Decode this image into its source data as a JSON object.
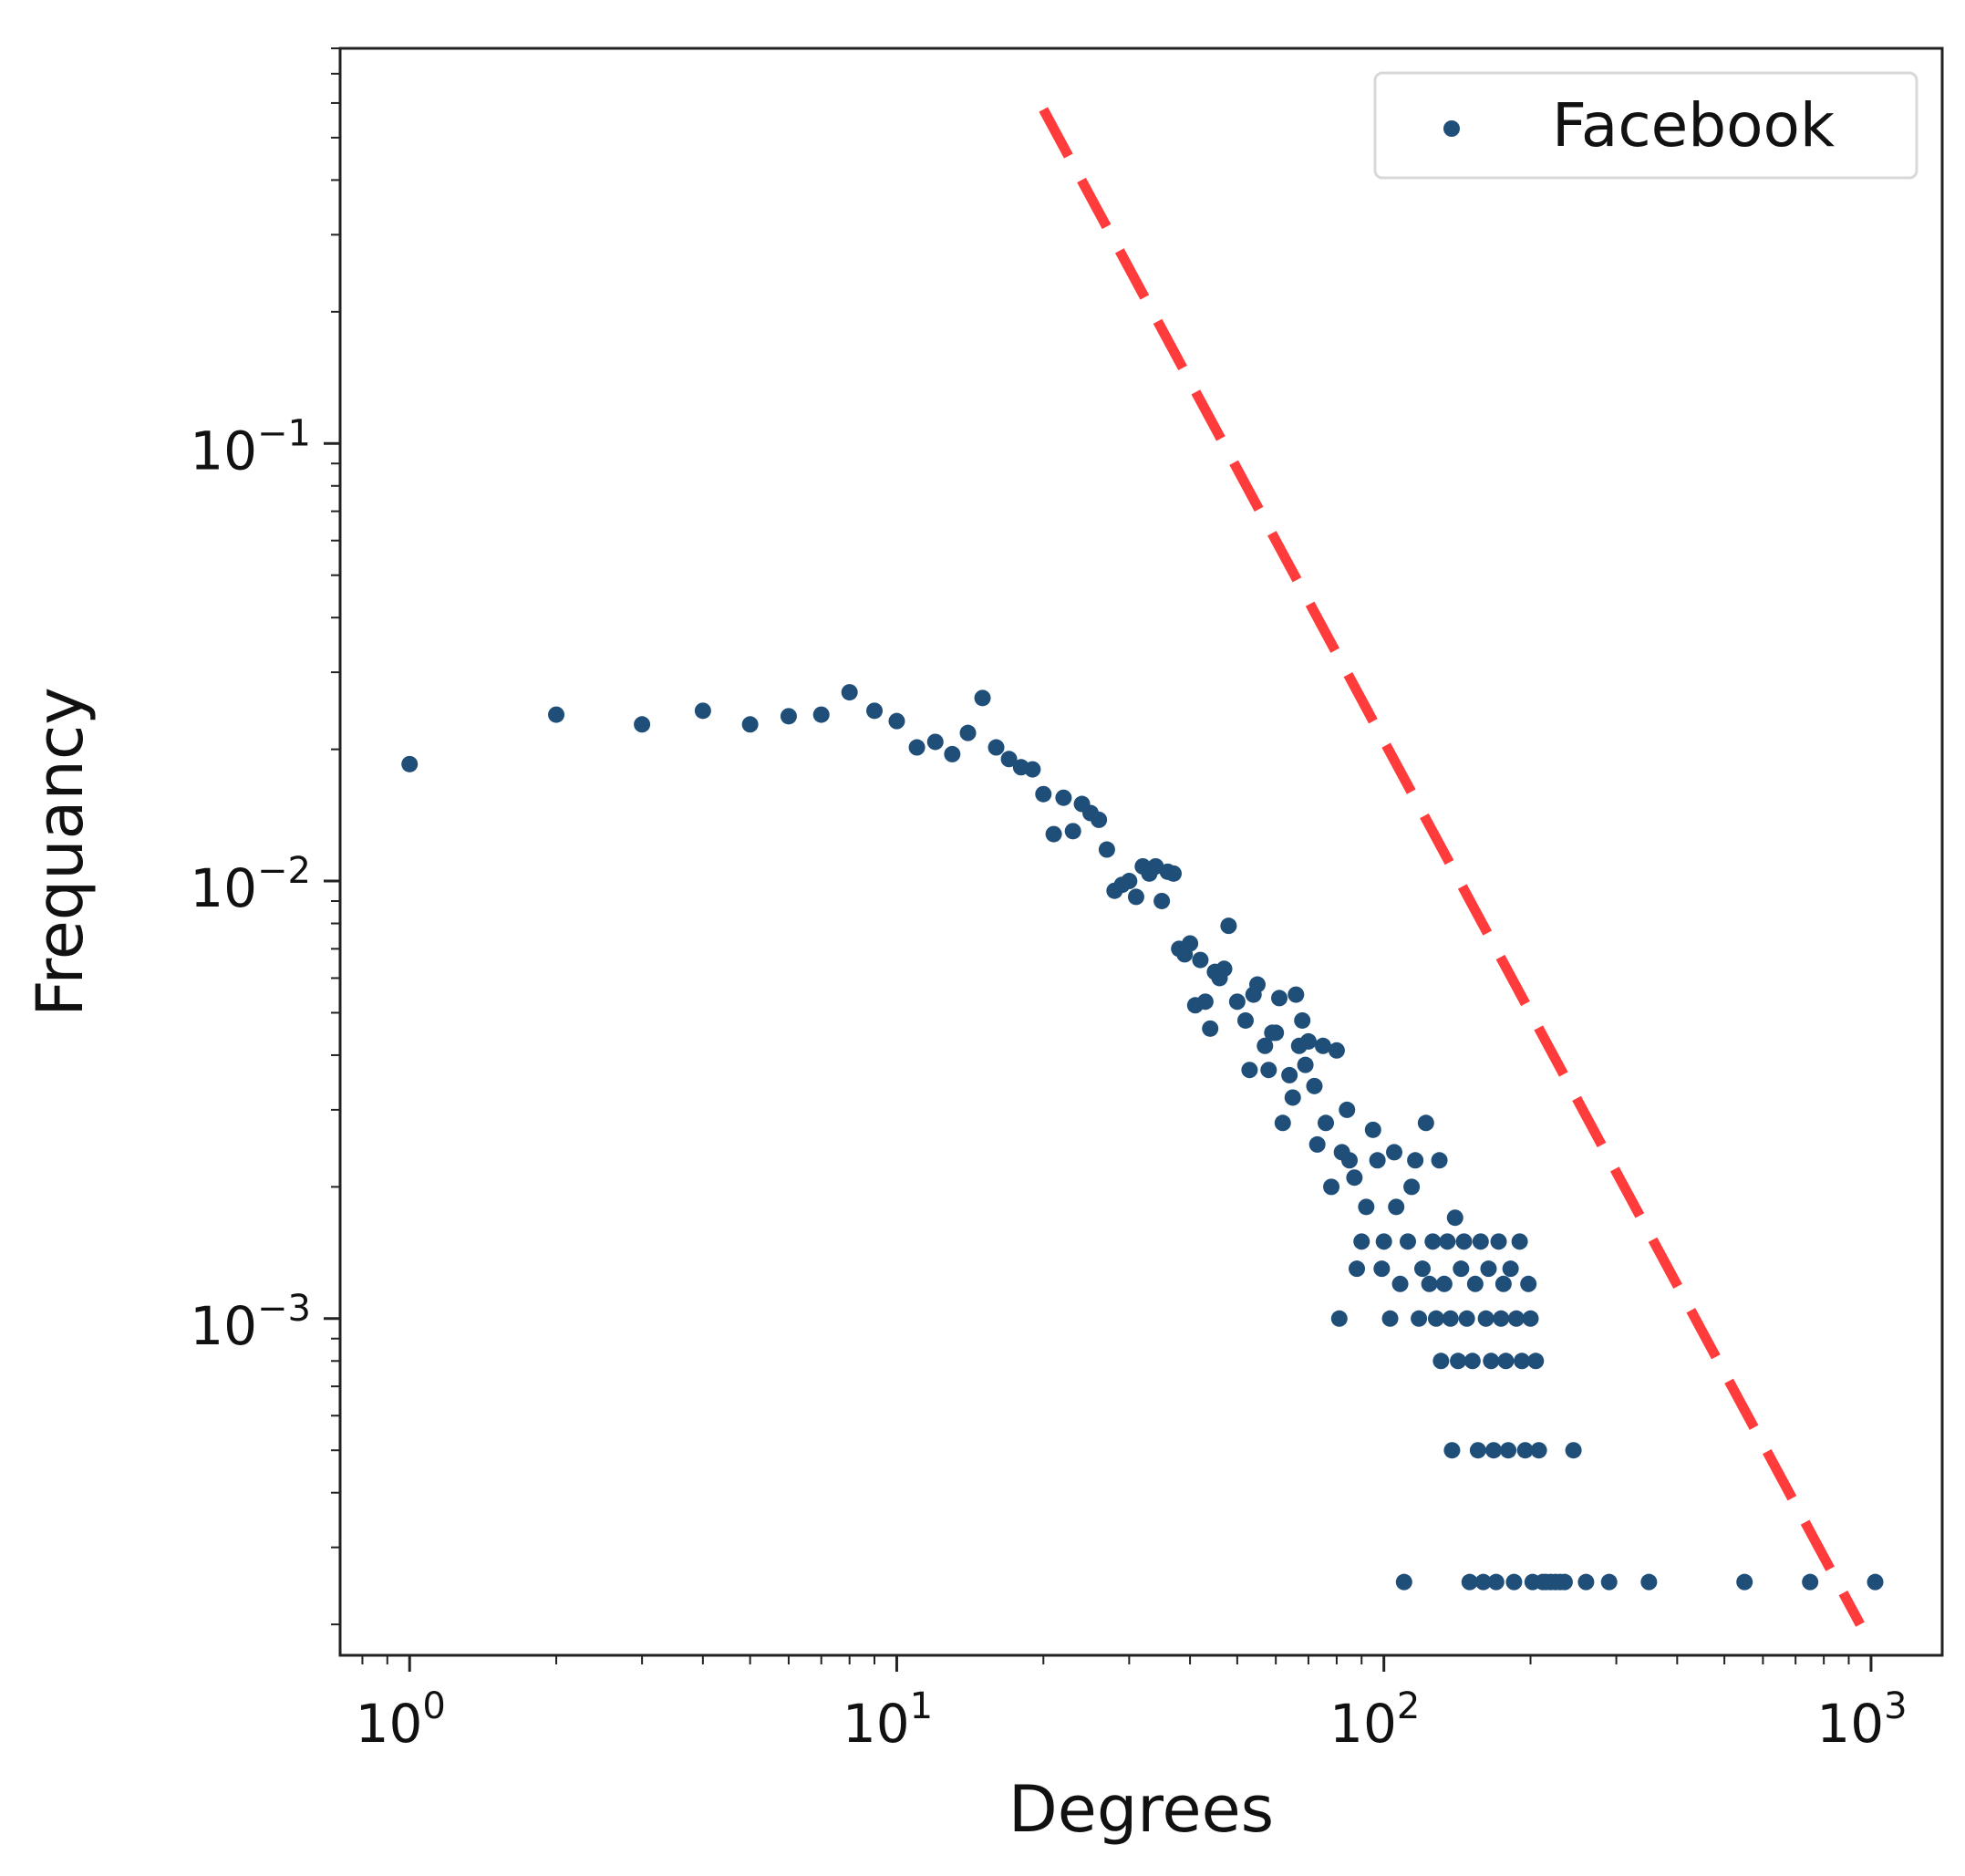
{
  "chart_data": {
    "type": "scatter",
    "xlabel": "Degrees",
    "ylabel": "Frequancy",
    "xscale": "log",
    "yscale": "log",
    "xlim": [
      0.72,
      1400
    ],
    "ylim": [
      0.00017,
      0.8
    ],
    "grid": false,
    "legend_position": "top-right",
    "x_ticks": [
      {
        "base": "10",
        "exp": "0",
        "value": 1
      },
      {
        "base": "10",
        "exp": "1",
        "value": 10
      },
      {
        "base": "10",
        "exp": "2",
        "value": 100
      },
      {
        "base": "10",
        "exp": "3",
        "value": 1000
      }
    ],
    "y_ticks": [
      {
        "base": "10",
        "exp": "−1",
        "value": 0.1
      },
      {
        "base": "10",
        "exp": "−2",
        "value": 0.01
      },
      {
        "base": "10",
        "exp": "−3",
        "value": 0.001
      }
    ],
    "series": [
      {
        "name": "Facebook",
        "color": "#1f4e79",
        "points": [
          [
            1,
            0.0185
          ],
          [
            2,
            0.024
          ],
          [
            3,
            0.0228
          ],
          [
            4,
            0.0245
          ],
          [
            5,
            0.0228
          ],
          [
            6,
            0.0238
          ],
          [
            7,
            0.024
          ],
          [
            8,
            0.027
          ],
          [
            9,
            0.0245
          ],
          [
            10,
            0.0232
          ],
          [
            11,
            0.0202
          ],
          [
            12,
            0.0208
          ],
          [
            13,
            0.0195
          ],
          [
            14,
            0.0218
          ],
          [
            15,
            0.0262
          ],
          [
            16,
            0.0202
          ],
          [
            17,
            0.019
          ],
          [
            18,
            0.0182
          ],
          [
            19,
            0.018
          ],
          [
            20,
            0.0158
          ],
          [
            21,
            0.0128
          ],
          [
            22,
            0.0155
          ],
          [
            23,
            0.013
          ],
          [
            24,
            0.015
          ],
          [
            25,
            0.0143
          ],
          [
            26,
            0.0138
          ],
          [
            27,
            0.0118
          ],
          [
            28,
            0.0095
          ],
          [
            29,
            0.0098
          ],
          [
            30,
            0.01
          ],
          [
            31,
            0.0092
          ],
          [
            32,
            0.0108
          ],
          [
            33,
            0.0104
          ],
          [
            34,
            0.0108
          ],
          [
            35,
            0.009
          ],
          [
            36,
            0.0105
          ],
          [
            37,
            0.0104
          ],
          [
            38,
            0.007
          ],
          [
            39,
            0.0068
          ],
          [
            40,
            0.0072
          ],
          [
            41,
            0.0052
          ],
          [
            42,
            0.0066
          ],
          [
            43,
            0.0053
          ],
          [
            44,
            0.0046
          ],
          [
            45,
            0.0062
          ],
          [
            46,
            0.006
          ],
          [
            47,
            0.0063
          ],
          [
            48,
            0.0079
          ],
          [
            50,
            0.0053
          ],
          [
            52,
            0.0048
          ],
          [
            53,
            0.0037
          ],
          [
            54,
            0.0055
          ],
          [
            55,
            0.0058
          ],
          [
            57,
            0.0042
          ],
          [
            58,
            0.0037
          ],
          [
            59,
            0.0045
          ],
          [
            60,
            0.0045
          ],
          [
            61,
            0.0054
          ],
          [
            62,
            0.0028
          ],
          [
            64,
            0.0036
          ],
          [
            65,
            0.0032
          ],
          [
            66,
            0.0055
          ],
          [
            67,
            0.0042
          ],
          [
            68,
            0.0048
          ],
          [
            69,
            0.0038
          ],
          [
            70,
            0.0043
          ],
          [
            72,
            0.0034
          ],
          [
            73,
            0.0025
          ],
          [
            75,
            0.0042
          ],
          [
            76,
            0.0028
          ],
          [
            78,
            0.002
          ],
          [
            80,
            0.0041
          ],
          [
            81,
            0.001
          ],
          [
            82,
            0.0024
          ],
          [
            84,
            0.003
          ],
          [
            85,
            0.0023
          ],
          [
            87,
            0.0021
          ],
          [
            88,
            0.0013
          ],
          [
            90,
            0.0015
          ],
          [
            92,
            0.0018
          ],
          [
            95,
            0.0027
          ],
          [
            97,
            0.0023
          ],
          [
            99,
            0.0013
          ],
          [
            100,
            0.0015
          ],
          [
            103,
            0.001
          ],
          [
            105,
            0.0024
          ],
          [
            106,
            0.0018
          ],
          [
            108,
            0.0012
          ],
          [
            110,
            0.00025
          ],
          [
            112,
            0.0015
          ],
          [
            114,
            0.002
          ],
          [
            116,
            0.0023
          ],
          [
            118,
            0.001
          ],
          [
            120,
            0.0013
          ],
          [
            122,
            0.0028
          ],
          [
            124,
            0.0012
          ],
          [
            126,
            0.0015
          ],
          [
            128,
            0.001
          ],
          [
            130,
            0.0023
          ],
          [
            131,
            0.0008
          ],
          [
            133,
            0.0012
          ],
          [
            135,
            0.0015
          ],
          [
            137,
            0.001
          ],
          [
            138,
            0.0005
          ],
          [
            140,
            0.0017
          ],
          [
            142,
            0.0008
          ],
          [
            144,
            0.0013
          ],
          [
            146,
            0.0015
          ],
          [
            148,
            0.001
          ],
          [
            150,
            0.00025
          ],
          [
            152,
            0.0008
          ],
          [
            154,
            0.0012
          ],
          [
            156,
            0.0005
          ],
          [
            158,
            0.0015
          ],
          [
            160,
            0.00025
          ],
          [
            162,
            0.001
          ],
          [
            164,
            0.0013
          ],
          [
            166,
            0.0008
          ],
          [
            168,
            0.0005
          ],
          [
            170,
            0.00025
          ],
          [
            172,
            0.0015
          ],
          [
            174,
            0.001
          ],
          [
            176,
            0.0012
          ],
          [
            178,
            0.0008
          ],
          [
            180,
            0.0005
          ],
          [
            182,
            0.0013
          ],
          [
            185,
            0.00025
          ],
          [
            187,
            0.001
          ],
          [
            190,
            0.0015
          ],
          [
            192,
            0.0008
          ],
          [
            195,
            0.0005
          ],
          [
            198,
            0.0012
          ],
          [
            200,
            0.001
          ],
          [
            202,
            0.00025
          ],
          [
            205,
            0.0008
          ],
          [
            208,
            0.0005
          ],
          [
            212,
            0.00025
          ],
          [
            215,
            0.00025
          ],
          [
            220,
            0.00025
          ],
          [
            225,
            0.00025
          ],
          [
            230,
            0.00025
          ],
          [
            235,
            0.00025
          ],
          [
            245,
            0.0005
          ],
          [
            260,
            0.00025
          ],
          [
            290,
            0.00025
          ],
          [
            350,
            0.00025
          ],
          [
            550,
            0.00025
          ],
          [
            750,
            0.00025
          ],
          [
            1020,
            0.00025
          ]
        ]
      }
    ],
    "reference_line": {
      "style": "dashed",
      "color": "#ff3b3b",
      "from": [
        20,
        0.58
      ],
      "to": [
        950,
        0.0002
      ]
    }
  }
}
